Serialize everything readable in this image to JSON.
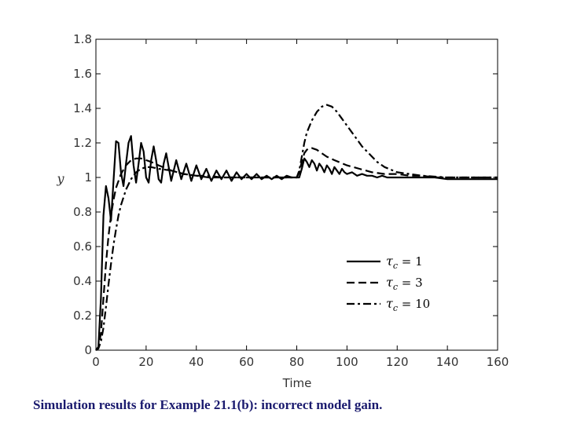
{
  "caption": "Simulation results for Example 21.1(b): incorrect model gain.",
  "chart_data": {
    "type": "line",
    "title": "",
    "xlabel": "Time",
    "ylabel": "y",
    "xlim": [
      0,
      160
    ],
    "ylim": [
      0,
      1.8
    ],
    "xticks": [
      0,
      20,
      40,
      60,
      80,
      100,
      120,
      140,
      160
    ],
    "yticks": [
      0,
      0.2,
      0.4,
      0.6,
      0.8,
      1,
      1.2,
      1.4,
      1.6,
      1.8
    ],
    "xtick_labels": [
      "0",
      "20",
      "40",
      "60",
      "80",
      "100",
      "120",
      "140",
      "160"
    ],
    "ytick_labels": [
      "0",
      "0.2",
      "0.4",
      "0.6",
      "0.8",
      "1",
      "1.2",
      "1.4",
      "1.6",
      "1.8"
    ],
    "grid": false,
    "legend_position": "bottom-right",
    "series": [
      {
        "name": "τc = 1",
        "legend_symbol": "τ",
        "legend_subscript": "c",
        "legend_value": "= 1",
        "style": "solid",
        "x": [
          0,
          1,
          2,
          3,
          4,
          5,
          6,
          7,
          8,
          9,
          10,
          11,
          12,
          13,
          14,
          15,
          16,
          17,
          18,
          19,
          20,
          21,
          22,
          23,
          24,
          25,
          26,
          27,
          28,
          29,
          30,
          32,
          34,
          36,
          38,
          40,
          42,
          44,
          46,
          48,
          50,
          52,
          54,
          56,
          58,
          60,
          62,
          64,
          66,
          68,
          70,
          72,
          74,
          76,
          78,
          80,
          81,
          82,
          83,
          84,
          85,
          86,
          87,
          88,
          89,
          90,
          91,
          92,
          93,
          94,
          95,
          96,
          97,
          98,
          99,
          100,
          102,
          104,
          106,
          108,
          110,
          112,
          114,
          116,
          118,
          120,
          125,
          130,
          135,
          140,
          145,
          150,
          155,
          160
        ],
        "y": [
          0,
          0.02,
          0.3,
          0.78,
          0.95,
          0.88,
          0.75,
          0.98,
          1.21,
          1.2,
          1.03,
          0.95,
          1.08,
          1.2,
          1.24,
          1.07,
          0.97,
          1.08,
          1.2,
          1.15,
          1.0,
          0.97,
          1.1,
          1.18,
          1.1,
          0.99,
          0.97,
          1.08,
          1.14,
          1.06,
          0.98,
          1.1,
          0.99,
          1.08,
          0.98,
          1.07,
          0.99,
          1.05,
          0.98,
          1.04,
          0.99,
          1.04,
          0.98,
          1.03,
          0.99,
          1.02,
          0.99,
          1.02,
          0.99,
          1.01,
          0.99,
          1.01,
          0.99,
          1.01,
          1.0,
          1.0,
          1.0,
          1.05,
          1.11,
          1.09,
          1.06,
          1.1,
          1.08,
          1.04,
          1.08,
          1.06,
          1.03,
          1.07,
          1.05,
          1.02,
          1.06,
          1.04,
          1.02,
          1.05,
          1.03,
          1.02,
          1.03,
          1.01,
          1.02,
          1.01,
          1.01,
          1.0,
          1.01,
          1.0,
          1.0,
          1.0,
          1.0,
          1.0,
          1.0,
          0.99,
          0.99,
          0.99,
          0.99,
          0.99
        ]
      },
      {
        "name": "τc = 3",
        "legend_symbol": "τ",
        "legend_subscript": "c",
        "legend_value": "= 3",
        "style": "dashed",
        "x": [
          0,
          1,
          2,
          3,
          4,
          5,
          6,
          7,
          8,
          10,
          12,
          14,
          16,
          18,
          20,
          22,
          25,
          30,
          35,
          40,
          45,
          50,
          55,
          60,
          65,
          70,
          75,
          80,
          81,
          82,
          83,
          84,
          85,
          86,
          88,
          90,
          92,
          95,
          100,
          105,
          110,
          115,
          120,
          125,
          130,
          135,
          140,
          150,
          160
        ],
        "y": [
          0,
          0.01,
          0.1,
          0.3,
          0.5,
          0.66,
          0.78,
          0.87,
          0.94,
          1.02,
          1.07,
          1.1,
          1.11,
          1.11,
          1.1,
          1.09,
          1.07,
          1.04,
          1.02,
          1.01,
          1.0,
          1.0,
          1.0,
          1.0,
          1.0,
          1.0,
          1.0,
          1.0,
          1.03,
          1.09,
          1.14,
          1.16,
          1.17,
          1.17,
          1.16,
          1.14,
          1.12,
          1.1,
          1.07,
          1.05,
          1.03,
          1.02,
          1.02,
          1.01,
          1.01,
          1.0,
          1.0,
          1.0,
          1.0
        ]
      },
      {
        "name": "τc = 10",
        "legend_symbol": "τ",
        "legend_subscript": "c",
        "legend_value": "= 10",
        "style": "dashdot",
        "x": [
          0,
          1,
          2,
          3,
          4,
          5,
          6,
          7,
          8,
          9,
          10,
          12,
          14,
          16,
          18,
          20,
          22,
          25,
          30,
          35,
          40,
          45,
          50,
          55,
          60,
          70,
          80,
          81,
          82,
          83,
          84,
          86,
          88,
          90,
          92,
          94,
          96,
          98,
          100,
          102,
          104,
          106,
          108,
          110,
          112,
          115,
          120,
          125,
          130,
          140,
          150,
          160
        ],
        "y": [
          0,
          0.01,
          0.05,
          0.13,
          0.25,
          0.38,
          0.5,
          0.61,
          0.7,
          0.78,
          0.84,
          0.93,
          0.99,
          1.03,
          1.05,
          1.06,
          1.06,
          1.05,
          1.04,
          1.02,
          1.01,
          1.01,
          1.0,
          1.0,
          1.0,
          1.0,
          1.0,
          1.04,
          1.12,
          1.2,
          1.26,
          1.33,
          1.38,
          1.41,
          1.42,
          1.41,
          1.38,
          1.34,
          1.3,
          1.26,
          1.22,
          1.18,
          1.15,
          1.12,
          1.09,
          1.06,
          1.03,
          1.02,
          1.01,
          1.0,
          1.0,
          1.0
        ]
      }
    ]
  }
}
